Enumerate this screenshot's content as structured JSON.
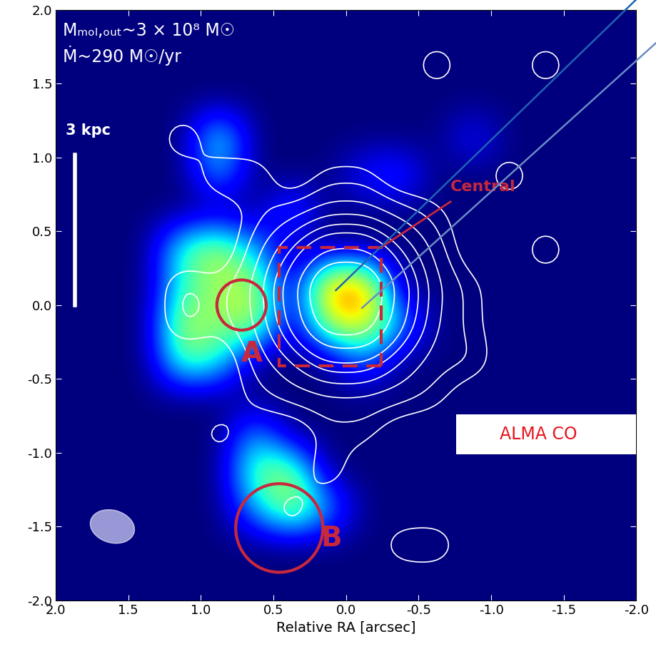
{
  "chart_data": {
    "type": "heatmap",
    "xlabel": "Relative RA [arcsec]",
    "xlim": [
      2.0,
      -2.0
    ],
    "ylim": [
      -2.0,
      2.0
    ],
    "xticks": [
      2.0,
      1.5,
      1.0,
      0.5,
      0.0,
      -0.5,
      -1.0,
      -1.5,
      -2.0
    ],
    "yticks": [
      -2.0,
      -1.5,
      -1.0,
      -0.5,
      0.0,
      0.5,
      1.0,
      1.5,
      2.0
    ],
    "x": [
      1.875,
      1.625,
      1.375,
      1.125,
      0.875,
      0.625,
      0.375,
      0.125,
      -0.125,
      -0.375,
      -0.625,
      -0.875,
      -1.125,
      -1.375,
      -1.625,
      -1.875
    ],
    "y": [
      1.875,
      1.625,
      1.375,
      1.125,
      0.875,
      0.625,
      0.375,
      0.125,
      -0.125,
      -0.375,
      -0.625,
      -0.875,
      -1.125,
      -1.375,
      -1.625,
      -1.875
    ],
    "color_range": [
      0,
      1
    ],
    "values": [
      [
        0,
        0,
        0,
        0,
        0,
        0,
        0,
        0,
        0,
        0,
        0,
        0,
        0,
        0,
        0,
        0
      ],
      [
        0,
        0,
        0,
        0,
        0,
        0,
        0,
        0,
        0,
        0,
        0,
        0,
        0,
        0,
        0,
        0
      ],
      [
        0,
        0,
        0,
        0,
        0,
        0,
        0,
        0,
        0,
        0,
        0,
        0,
        0,
        0,
        0,
        0
      ],
      [
        0,
        0,
        0,
        0,
        0.45,
        0,
        0,
        0,
        0,
        0,
        0,
        0.15,
        0,
        0,
        0,
        0
      ],
      [
        0,
        0,
        0,
        0,
        0.3,
        0,
        0,
        0,
        0.15,
        0.2,
        0,
        0,
        0,
        0,
        0,
        0
      ],
      [
        0,
        0,
        0,
        0,
        0,
        0,
        0.25,
        0,
        0,
        0,
        0,
        0,
        0,
        0,
        0,
        0
      ],
      [
        0,
        0,
        0,
        0.45,
        0.6,
        0.3,
        0,
        0,
        0,
        0,
        0,
        0,
        0,
        0,
        0,
        0
      ],
      [
        0,
        0,
        0,
        0.4,
        0.55,
        0.6,
        0,
        0.8,
        0.85,
        0,
        0,
        0,
        0,
        0,
        0,
        0
      ],
      [
        0,
        0,
        0,
        0.6,
        0.5,
        0.6,
        0,
        0.6,
        0.7,
        0.3,
        0,
        0,
        0,
        0,
        0,
        0
      ],
      [
        0,
        0,
        0,
        0.5,
        0.4,
        0,
        0,
        0,
        0.25,
        0,
        0,
        0,
        0,
        0,
        0,
        0
      ],
      [
        0,
        0,
        0,
        0,
        0,
        0,
        0,
        0,
        0,
        0,
        0,
        0,
        0,
        0,
        0,
        0
      ],
      [
        0,
        0,
        0,
        0,
        0,
        0.3,
        0,
        0,
        0,
        0,
        0,
        0,
        0,
        0,
        0,
        0
      ],
      [
        0,
        0,
        0,
        0,
        0,
        0.5,
        0.55,
        0,
        0,
        0,
        0,
        0,
        0,
        0,
        0,
        0
      ],
      [
        0,
        0,
        0,
        0,
        0,
        0.3,
        0.6,
        0.3,
        0,
        0,
        0,
        0,
        0,
        0,
        0,
        0
      ],
      [
        0,
        0,
        0,
        0,
        0,
        0,
        0,
        0,
        0,
        0,
        0,
        0,
        0,
        0,
        0,
        0
      ],
      [
        0,
        0,
        0,
        0,
        0,
        0,
        0,
        0,
        0,
        0,
        0,
        0,
        0,
        0,
        0,
        0
      ]
    ],
    "contours": {
      "levels": [
        0.6,
        1,
        1.5,
        2,
        2.5,
        3,
        4,
        5
      ],
      "values": [
        [
          0,
          0,
          0,
          0,
          0,
          0,
          0,
          0,
          0,
          0,
          0,
          0,
          0,
          0,
          0,
          0
        ],
        [
          0,
          0,
          0,
          0,
          0,
          0,
          0,
          0,
          0,
          0,
          1.3,
          0,
          0,
          1.3,
          0,
          0
        ],
        [
          0,
          0,
          0,
          0,
          0,
          0,
          0,
          0,
          0,
          0,
          0,
          0,
          0,
          0,
          0,
          0
        ],
        [
          0,
          0,
          0,
          1.3,
          0,
          0,
          0,
          0,
          0,
          0,
          0,
          0,
          0,
          0,
          0,
          0
        ],
        [
          0,
          0,
          0,
          0,
          1.2,
          1.1,
          0,
          0.8,
          0.8,
          0,
          0,
          0,
          1.3,
          0,
          0,
          0
        ],
        [
          0,
          0,
          0,
          0,
          0,
          0.8,
          1.3,
          1.8,
          1.8,
          1.3,
          0.8,
          0,
          0,
          0,
          0,
          0
        ],
        [
          0,
          0,
          0,
          0,
          0,
          1.3,
          2.5,
          4,
          4,
          2.5,
          1.3,
          0,
          0,
          1.3,
          0,
          0
        ],
        [
          0,
          0,
          0,
          1.2,
          0.8,
          1.6,
          3.5,
          7,
          7,
          3.5,
          1.6,
          0.8,
          0,
          0,
          0,
          0
        ],
        [
          0,
          0,
          0,
          1.2,
          0.8,
          1.5,
          3.2,
          6,
          6,
          3.2,
          1.5,
          0.8,
          0,
          0,
          0,
          0
        ],
        [
          0,
          0,
          0,
          0,
          0,
          1.2,
          2,
          3,
          3,
          2,
          1.2,
          1.1,
          0,
          0,
          0,
          0
        ],
        [
          0,
          0,
          0,
          0,
          0,
          0.8,
          1.2,
          1.4,
          1.4,
          1.2,
          0.8,
          0,
          0,
          0,
          0,
          0
        ],
        [
          0,
          0,
          0,
          0,
          1.1,
          0,
          0,
          0.8,
          0.8,
          0,
          0,
          0,
          1.2,
          0,
          0,
          0
        ],
        [
          0,
          0,
          0,
          0,
          0,
          0,
          0,
          1.1,
          0,
          0,
          0,
          0,
          0,
          0,
          0,
          0
        ],
        [
          0,
          0,
          0,
          0,
          0,
          0,
          1.1,
          0,
          0,
          0,
          0,
          0,
          0,
          0,
          0,
          0
        ],
        [
          0,
          0,
          0,
          0,
          0,
          0,
          0,
          0,
          0,
          1.1,
          1.2,
          0,
          0,
          0,
          0,
          0
        ],
        [
          0,
          0,
          0,
          0,
          0,
          0,
          0,
          0,
          0,
          0,
          0,
          0,
          0,
          0,
          0,
          0
        ]
      ]
    },
    "annotations": {
      "outflow_mass": "Mₘₒₗ,ₒᵤₜ~3 × 10⁸ M☉",
      "outflow_rate": "Ṁ~290 M☉/yr",
      "scale_bar": "3 kpc",
      "central": "Central",
      "region_a": "A",
      "region_b": "B",
      "inset_label": "ALMA CO"
    }
  }
}
